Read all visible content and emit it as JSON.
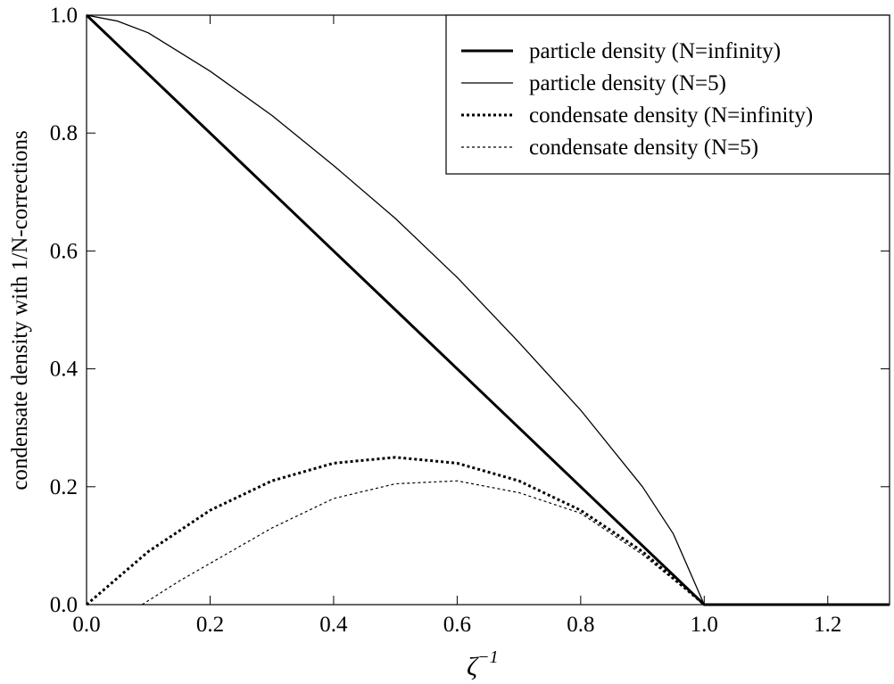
{
  "chart_data": {
    "type": "line",
    "xlabel": "ζ",
    "xlabel_superscript": "−1",
    "ylabel": "condensate density with 1/N-corrections",
    "xlim": [
      0.0,
      1.3
    ],
    "ylim": [
      0.0,
      1.0
    ],
    "x_ticks": [
      "0.0",
      "0.2",
      "0.4",
      "0.6",
      "0.8",
      "1.0",
      "1.2"
    ],
    "y_ticks": [
      "0.0",
      "0.2",
      "0.4",
      "0.6",
      "0.8",
      "1.0"
    ],
    "grid": false,
    "legend_position": "top-right",
    "series": [
      {
        "name": "particle density (N=infinity)",
        "style": "thick-solid",
        "x": [
          0.0,
          0.1,
          0.2,
          0.3,
          0.4,
          0.5,
          0.6,
          0.7,
          0.8,
          0.9,
          1.0,
          1.1,
          1.2,
          1.3
        ],
        "y": [
          1.0,
          0.9,
          0.8,
          0.7,
          0.6,
          0.5,
          0.4,
          0.3,
          0.2,
          0.1,
          0.0,
          0.0,
          0.0,
          0.0
        ]
      },
      {
        "name": "particle density (N=5)",
        "style": "thin-solid",
        "x": [
          0.0,
          0.05,
          0.1,
          0.2,
          0.3,
          0.4,
          0.5,
          0.6,
          0.7,
          0.8,
          0.9,
          0.95,
          1.0,
          1.1,
          1.2,
          1.3
        ],
        "y": [
          1.0,
          0.99,
          0.97,
          0.905,
          0.83,
          0.745,
          0.655,
          0.555,
          0.445,
          0.33,
          0.2,
          0.12,
          0.0,
          0.0,
          0.0,
          0.0
        ]
      },
      {
        "name": "condensate density (N=infinity)",
        "style": "thick-dotted",
        "x": [
          0.0,
          0.1,
          0.2,
          0.3,
          0.4,
          0.5,
          0.6,
          0.7,
          0.8,
          0.9,
          1.0,
          1.1,
          1.2,
          1.3
        ],
        "y": [
          0.0,
          0.09,
          0.16,
          0.21,
          0.24,
          0.25,
          0.24,
          0.21,
          0.16,
          0.09,
          0.0,
          0.0,
          0.0,
          0.0
        ]
      },
      {
        "name": "condensate density (N=5)",
        "style": "thin-dotted",
        "x": [
          0.09,
          0.15,
          0.2,
          0.3,
          0.4,
          0.5,
          0.6,
          0.7,
          0.8,
          0.9,
          1.0
        ],
        "y": [
          0.0,
          0.04,
          0.07,
          0.13,
          0.18,
          0.205,
          0.21,
          0.19,
          0.155,
          0.085,
          0.0
        ]
      }
    ]
  }
}
